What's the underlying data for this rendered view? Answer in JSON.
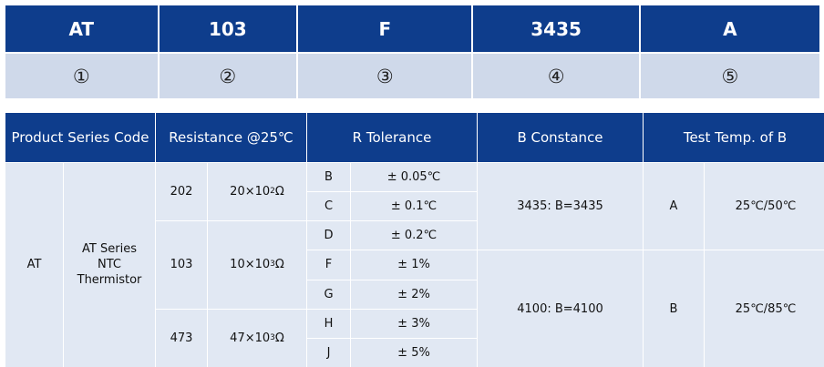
{
  "code_header": [
    "AT",
    "103",
    "F",
    "3435",
    "A"
  ],
  "code_index": [
    "①",
    "②",
    "③",
    "④",
    "⑤"
  ],
  "table": {
    "headers": {
      "series": "Product Series Code",
      "resistance": "Resistance @25℃",
      "tolerance": "R Tolerance",
      "b_constance": "B Constance",
      "test_temp": "Test Temp. of B"
    },
    "series_code": "AT",
    "series_name": "AT Series NTC Thermistor",
    "resistance": [
      {
        "code": "202",
        "value_base": "20×10",
        "value_exp": "2",
        "unit": "Ω"
      },
      {
        "code": "103",
        "value_base": "10×10",
        "value_exp": "3",
        "unit": "Ω"
      },
      {
        "code": "473",
        "value_base": "47×10",
        "value_exp": "3",
        "unit": "Ω"
      }
    ],
    "tolerance": [
      {
        "code": "B",
        "value": "± 0.05℃"
      },
      {
        "code": "C",
        "value": "± 0.1℃"
      },
      {
        "code": "D",
        "value": "± 0.2℃"
      },
      {
        "code": "F",
        "value": "± 1%"
      },
      {
        "code": "G",
        "value": "± 2%"
      },
      {
        "code": "H",
        "value": "± 3%"
      },
      {
        "code": "J",
        "value": "± 5%"
      }
    ],
    "b_constance": [
      "3435: B=3435",
      "4100: B=4100"
    ],
    "test_temp": [
      {
        "code": "A",
        "value": "25℃/50℃"
      },
      {
        "code": "B",
        "value": "25℃/85℃"
      }
    ]
  }
}
